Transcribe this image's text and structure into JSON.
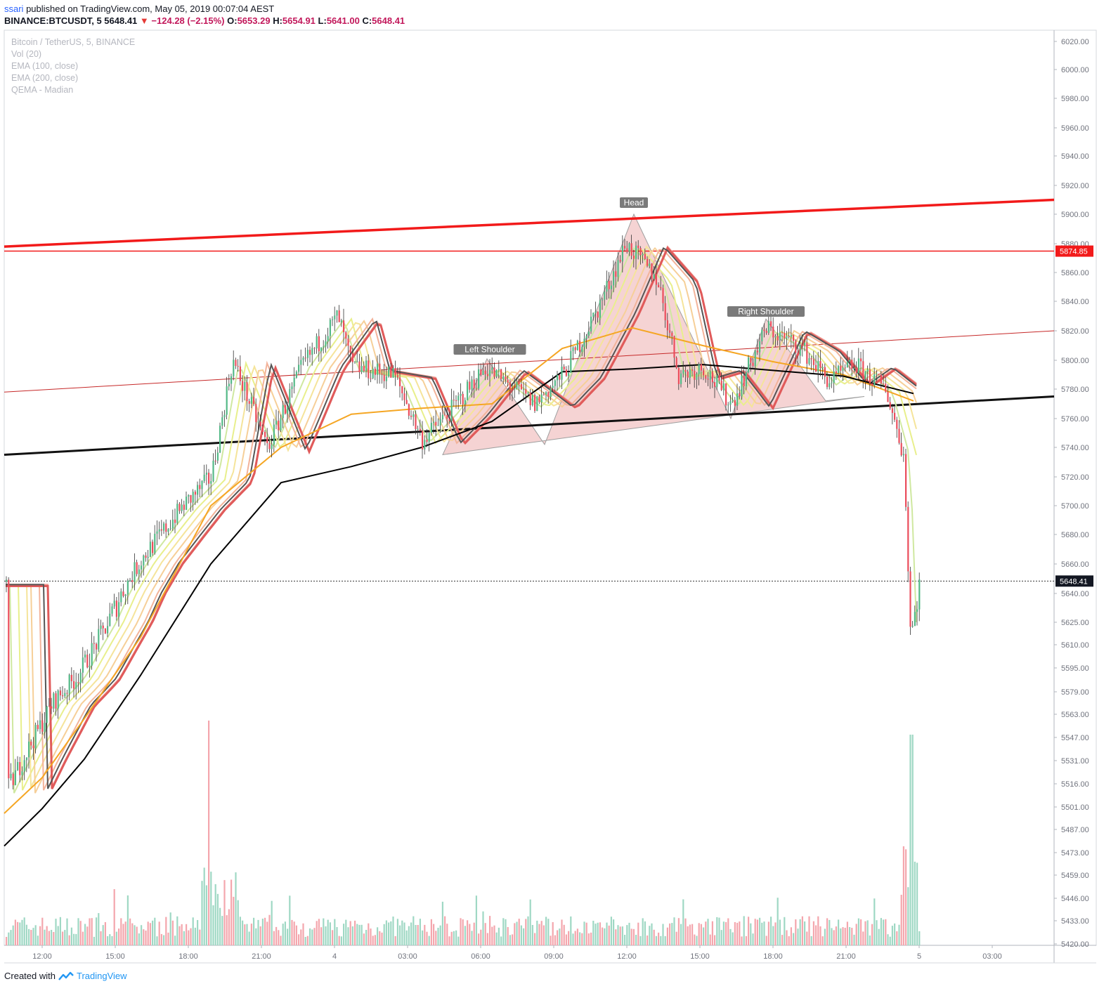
{
  "header": {
    "user": "ssari",
    "published_text": "published on TradingView.com, May 05, 2019 00:07:04 AEST"
  },
  "quote": {
    "symbol": "BINANCE:BTCUSDT, 5",
    "last": "5648.41",
    "change": "−124.28 (−2.15%)",
    "open_label": "O:",
    "open": "5653.29",
    "high_label": "H:",
    "high": "5654.91",
    "low_label": "L:",
    "low": "5641.00",
    "close_label": "C:",
    "close": "5648.41"
  },
  "legend": {
    "title": "Bitcoin / TetherUS, 5, BINANCE",
    "vol": "Vol (20)",
    "ema100": "EMA (100, close)",
    "ema200": "EMA (200, close)",
    "qema": "QEMA - Madian"
  },
  "footer": {
    "created_with": "Created with",
    "brand": "TradingView"
  },
  "colors": {
    "up": "#53b987",
    "down": "#eb4d5c",
    "vol_up": "#9fd8c4",
    "vol_down": "#f4a6ad",
    "resistance": "#f21a1a",
    "neckline": "#111111",
    "ema100": "#f5a623",
    "ema200": "#000000",
    "pattern_fill": "#f2c4c4",
    "accent": "#2196f3"
  },
  "chart_data": {
    "type": "candlestick",
    "title": "Bitcoin / TetherUS, 5, BINANCE",
    "symbol": "BINANCE:BTCUSDT",
    "interval": "5",
    "ylim": [
      5412,
      6026
    ],
    "y_ticks": [
      "6020.00",
      "6000.00",
      "5980.00",
      "5960.00",
      "5940.00",
      "5920.00",
      "5900.00",
      "5880.00",
      "5860.00",
      "5840.00",
      "5820.00",
      "5800.00",
      "5780.00",
      "5760.00",
      "5740.00",
      "5720.00",
      "5700.00",
      "5680.00",
      "5660.00",
      "5640.00",
      "5625.00",
      "5610.00",
      "5595.00",
      "5579.00",
      "5563.00",
      "5547.00",
      "5531.00",
      "5516.00",
      "5501.00",
      "5487.00",
      "5473.00",
      "5459.00",
      "5446.00",
      "5433.00",
      "5420.00"
    ],
    "x_ticks": [
      "12:00",
      "15:00",
      "18:00",
      "21:00",
      "4",
      "03:00",
      "06:00",
      "09:00",
      "12:00",
      "15:00",
      "18:00",
      "21:00",
      "5",
      "03:00"
    ],
    "price_labels": [
      {
        "value": 5874.85,
        "text": "5874.85",
        "color": "#f21a1a"
      },
      {
        "value": 5648.41,
        "text": "5648.41",
        "color": "#131722"
      }
    ],
    "annotations": [
      {
        "text": "Head",
        "x": "12:10",
        "y": 5900
      },
      {
        "text": "Left Shoulder",
        "x": "06:15",
        "y": 5801
      },
      {
        "text": "Right Shoulder",
        "x": "17:45",
        "y": 5828
      }
    ],
    "horizontal_lines": [
      {
        "value": 5874.85,
        "color": "#f21a1a"
      }
    ],
    "series": [
      {
        "name": "EMA (100, close)",
        "values": [
          5497,
          5520,
          5560,
          5615,
          5700,
          5740,
          5763,
          5767,
          5770,
          5808,
          5822,
          5810,
          5799,
          5790,
          5772
        ]
      },
      {
        "name": "EMA (200, close)",
        "values": [
          5477,
          5500,
          5532,
          5590,
          5660,
          5716,
          5727,
          5740,
          5758,
          5792,
          5794,
          5797,
          5793,
          5789,
          5777
        ]
      }
    ],
    "price_path": [
      5512,
      5540,
      5572,
      5590,
      5663,
      5800,
      5705,
      5790,
      5820,
      5740,
      5797,
      5765,
      5790,
      5900,
      5835,
      5790,
      5763,
      5822,
      5785,
      5797,
      5790,
      5770,
      5705,
      5615,
      5648
    ],
    "grid": true,
    "legend_position": "top-left"
  }
}
